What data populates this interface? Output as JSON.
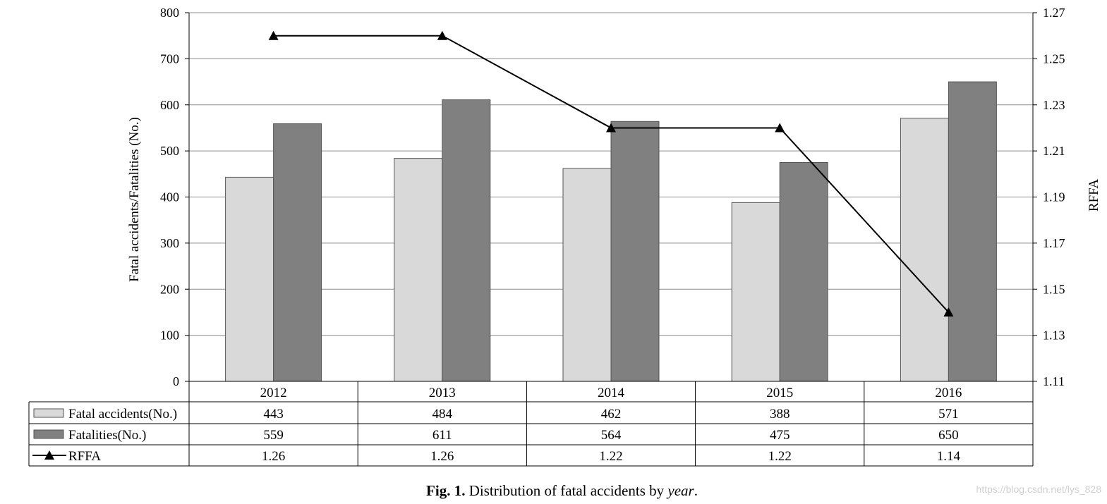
{
  "chart_data": {
    "type": "bar",
    "categories": [
      "2012",
      "2013",
      "2014",
      "2015",
      "2016"
    ],
    "series": [
      {
        "name": "Fatal accidents(No.)",
        "values": [
          443,
          484,
          462,
          388,
          571
        ],
        "color": "#d9d9d9",
        "kind": "bar",
        "axis": "left"
      },
      {
        "name": "Fatalities(No.)",
        "values": [
          559,
          611,
          564,
          475,
          650
        ],
        "color": "#808080",
        "kind": "bar",
        "axis": "left"
      },
      {
        "name": "RFFA",
        "values": [
          1.26,
          1.26,
          1.22,
          1.22,
          1.14
        ],
        "color": "#000000",
        "kind": "line",
        "marker": "triangle",
        "axis": "right"
      }
    ],
    "ylabel": "Fatal accidents/Fatalities (No.)",
    "y2label": "RFFA",
    "ylim": [
      0,
      800
    ],
    "y2lim": [
      1.11,
      1.27
    ],
    "yticks": [
      "0",
      "100",
      "200",
      "300",
      "400",
      "500",
      "600",
      "700",
      "800"
    ],
    "y2ticks": [
      "1.11",
      "1.13",
      "1.15",
      "1.17",
      "1.19",
      "1.21",
      "1.23",
      "1.25",
      "1.27"
    ],
    "grid": true,
    "legend": "data-table",
    "table_values": [
      [
        "443",
        "484",
        "462",
        "388",
        "571"
      ],
      [
        "559",
        "611",
        "564",
        "475",
        "650"
      ],
      [
        "1.26",
        "1.26",
        "1.22",
        "1.22",
        "1.14"
      ]
    ]
  },
  "caption": {
    "label": "Fig. 1.",
    "text": "Distribution of fatal accidents by",
    "emph": "year",
    "end": "."
  },
  "watermark": "https://blog.csdn.net/lys_828"
}
